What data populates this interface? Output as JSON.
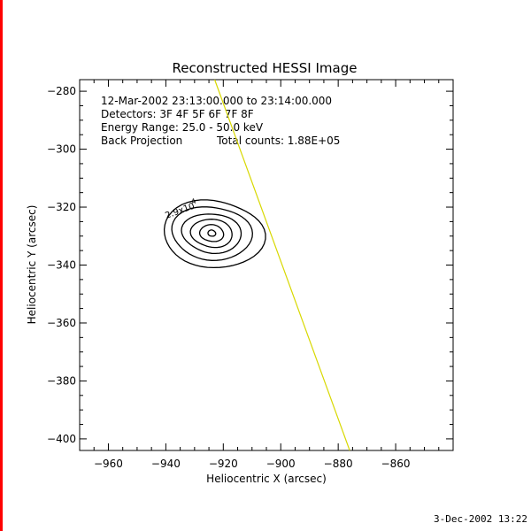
{
  "chart_data": {
    "type": "contour",
    "title": "Reconstructed HESSI Image",
    "xlabel": "Heliocentric X (arcsec)",
    "ylabel": "Heliocentric Y (arcsec)",
    "xlim": [
      -970,
      -840
    ],
    "ylim": [
      -404,
      -276
    ],
    "xticks": [
      -960,
      -940,
      -920,
      -900,
      -880,
      -860
    ],
    "yticks": [
      -280,
      -300,
      -320,
      -340,
      -360,
      -380,
      -400
    ],
    "annotations": [
      "12-Mar-2002 23:13:00.000 to 23:14:00.000",
      "Detectors: 3F 4F 5F 6F 7F 8F",
      "Energy Range: 25.0 - 50.0 keV",
      "Back Projection",
      "Total counts: 1.88E+05"
    ],
    "contour_label": "2.9x10",
    "contour_label_exp": "4",
    "contours": {
      "center": [
        -924,
        -329
      ],
      "levels": [
        {
          "rx": 17,
          "ry": 12
        },
        {
          "rx": 13.5,
          "ry": 9.5
        },
        {
          "rx": 10,
          "ry": 7
        },
        {
          "rx": 7,
          "ry": 5
        },
        {
          "rx": 4,
          "ry": 3
        },
        {
          "rx": 1.3,
          "ry": 1.1
        }
      ]
    },
    "limb_line": {
      "color": "#d8d800",
      "points": [
        [
          -923,
          -275
        ],
        [
          -876,
          -404
        ]
      ]
    },
    "grid": false
  },
  "footer": {
    "timestamp": "3-Dec-2002 13:22"
  }
}
